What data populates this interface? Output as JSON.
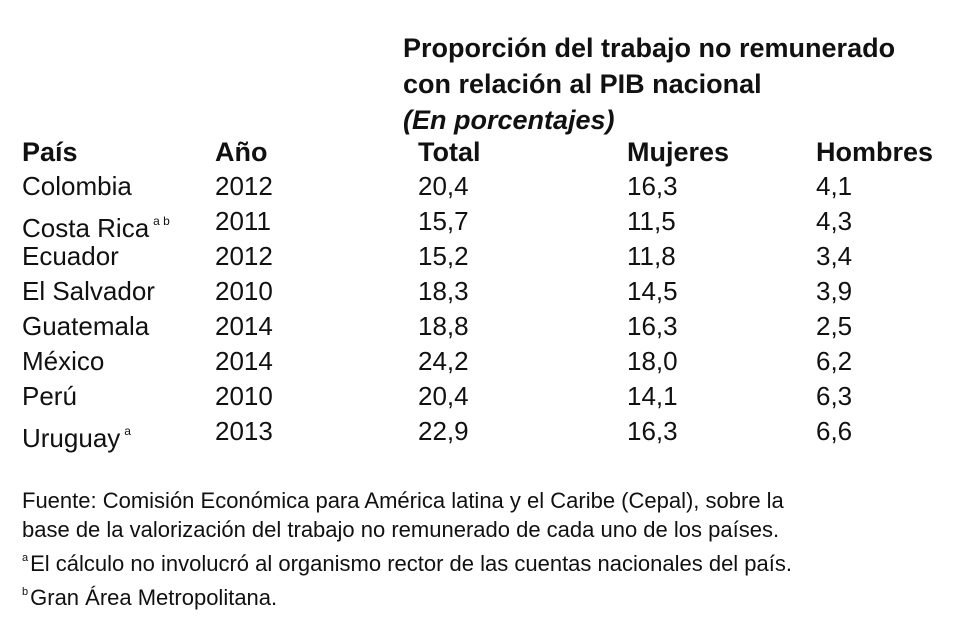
{
  "heading": {
    "line1": "Proporción del trabajo no remunerado",
    "line2": "con relación al PIB nacional",
    "units": "(En porcentajes)"
  },
  "columns": {
    "country": "País",
    "year": "Año",
    "total": "Total",
    "women": "Mujeres",
    "men": "Hombres"
  },
  "rows": [
    {
      "country": "Colombia",
      "mark": "",
      "year": "2012",
      "total": "20,4",
      "women": "16,3",
      "men": "4,1"
    },
    {
      "country": "Costa Rica",
      "mark": "a b",
      "year": "2011",
      "total": "15,7",
      "women": "11,5",
      "men": "4,3"
    },
    {
      "country": "Ecuador",
      "mark": "",
      "year": "2012",
      "total": "15,2",
      "women": "11,8",
      "men": "3,4"
    },
    {
      "country": "El Salvador",
      "mark": "",
      "year": "2010",
      "total": "18,3",
      "women": "14,5",
      "men": "3,9"
    },
    {
      "country": "Guatemala",
      "mark": "",
      "year": "2014",
      "total": "18,8",
      "women": "16,3",
      "men": "2,5"
    },
    {
      "country": "México",
      "mark": "",
      "year": "2014",
      "total": "24,2",
      "women": "18,0",
      "men": "6,2"
    },
    {
      "country": "Perú",
      "mark": "",
      "year": "2010",
      "total": "20,4",
      "women": "14,1",
      "men": "6,3"
    },
    {
      "country": "Uruguay",
      "mark": "a",
      "year": "2013",
      "total": "22,9",
      "women": "16,3",
      "men": "6,6"
    }
  ],
  "notes": {
    "source_line1": "Fuente: Comisión Económica para América latina y el Caribe (Cepal), sobre la",
    "source_line2": "base de la valorización del trabajo no remunerado de cada uno de los países.",
    "note_a_mark": "a",
    "note_a": "El cálculo no involucró al organismo rector de las cuentas nacionales del país.",
    "note_b_mark": "b",
    "note_b": "Gran Área Metropolitana."
  }
}
